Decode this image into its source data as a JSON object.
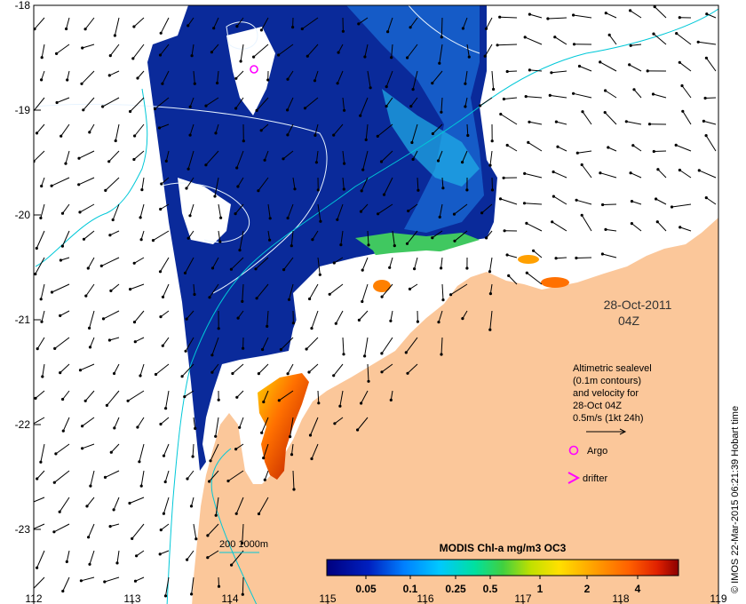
{
  "map": {
    "x_ticks": [
      "112",
      "113",
      "114",
      "115",
      "116",
      "117",
      "118",
      "119"
    ],
    "y_ticks": [
      "-18",
      "-19",
      "-20",
      "-21",
      "-22",
      "-23"
    ],
    "colors": {
      "land": "#fbc79a",
      "ocean": "#ffffff",
      "contour": "#00c8d8",
      "sealevel_contour": "#e8f4ff",
      "marker": "#ff00ff",
      "arrow": "#000000"
    }
  },
  "date_label": {
    "date": "28-Oct-2011",
    "time": "04Z"
  },
  "legend": {
    "line1": "Altimetric sealevel",
    "line2": "(0.1m contours)",
    "line3": "and velocity for",
    "line4": "28-Oct 04Z",
    "line5": "0.5m/s (1kt 24h)",
    "argo_label": "Argo",
    "drifter_label": "drifter"
  },
  "depth_legend": {
    "label": "200  1000m"
  },
  "colorbar": {
    "title": "MODIS Chl-a mg/m3 OC3",
    "tick_labels": [
      "0.05",
      "0.1",
      "0.25",
      "0.5",
      "1",
      "2",
      "4"
    ],
    "colors": [
      "#00007f",
      "#0020c0",
      "#0080ff",
      "#00c8ff",
      "#00e0a0",
      "#40d040",
      "#c0e000",
      "#ffe000",
      "#ffa000",
      "#ff6000",
      "#e02000",
      "#8b0000"
    ]
  },
  "credit": "© IMOS 22-Mar-2015 06:21:39 Hobart time"
}
